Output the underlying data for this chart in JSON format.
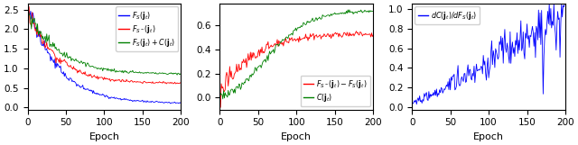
{
  "seed": 42,
  "n_epochs": 201,
  "subplot1": {
    "legend_labels": [
      "$F_S(\\mathbf{j}_t)$",
      "$F_{S^-}(\\mathbf{j}_t)$",
      "$F_S(\\mathbf{j}_t) + C(\\mathbf{j}_t)$"
    ],
    "legend_colors": [
      "blue",
      "red",
      "green"
    ],
    "ylim": [
      -0.05,
      2.65
    ],
    "yticks": [
      0.0,
      0.5,
      1.0,
      1.5,
      2.0,
      2.5
    ],
    "xlabel": "Epoch"
  },
  "subplot2": {
    "legend_labels": [
      "$F_{S^-}(\\mathbf{j}_t) - F_S(\\mathbf{j}_t)$",
      "$C(\\mathbf{j}_t)$"
    ],
    "legend_colors": [
      "red",
      "green"
    ],
    "ylim": [
      -0.1,
      0.78
    ],
    "yticks": [
      0.0,
      0.2,
      0.4,
      0.6
    ],
    "xlabel": "Epoch"
  },
  "subplot3": {
    "legend_labels": [
      "$dC(\\mathbf{j}_t)/dF_S(\\mathbf{j}_t)$"
    ],
    "legend_colors": [
      "blue"
    ],
    "ylim": [
      -0.02,
      1.05
    ],
    "yticks": [
      0.0,
      0.2,
      0.4,
      0.6,
      0.8,
      1.0
    ],
    "xlabel": "Epoch"
  },
  "xticks": [
    0,
    50,
    100,
    150,
    200
  ],
  "figsize": [
    6.4,
    1.61
  ],
  "dpi": 100
}
